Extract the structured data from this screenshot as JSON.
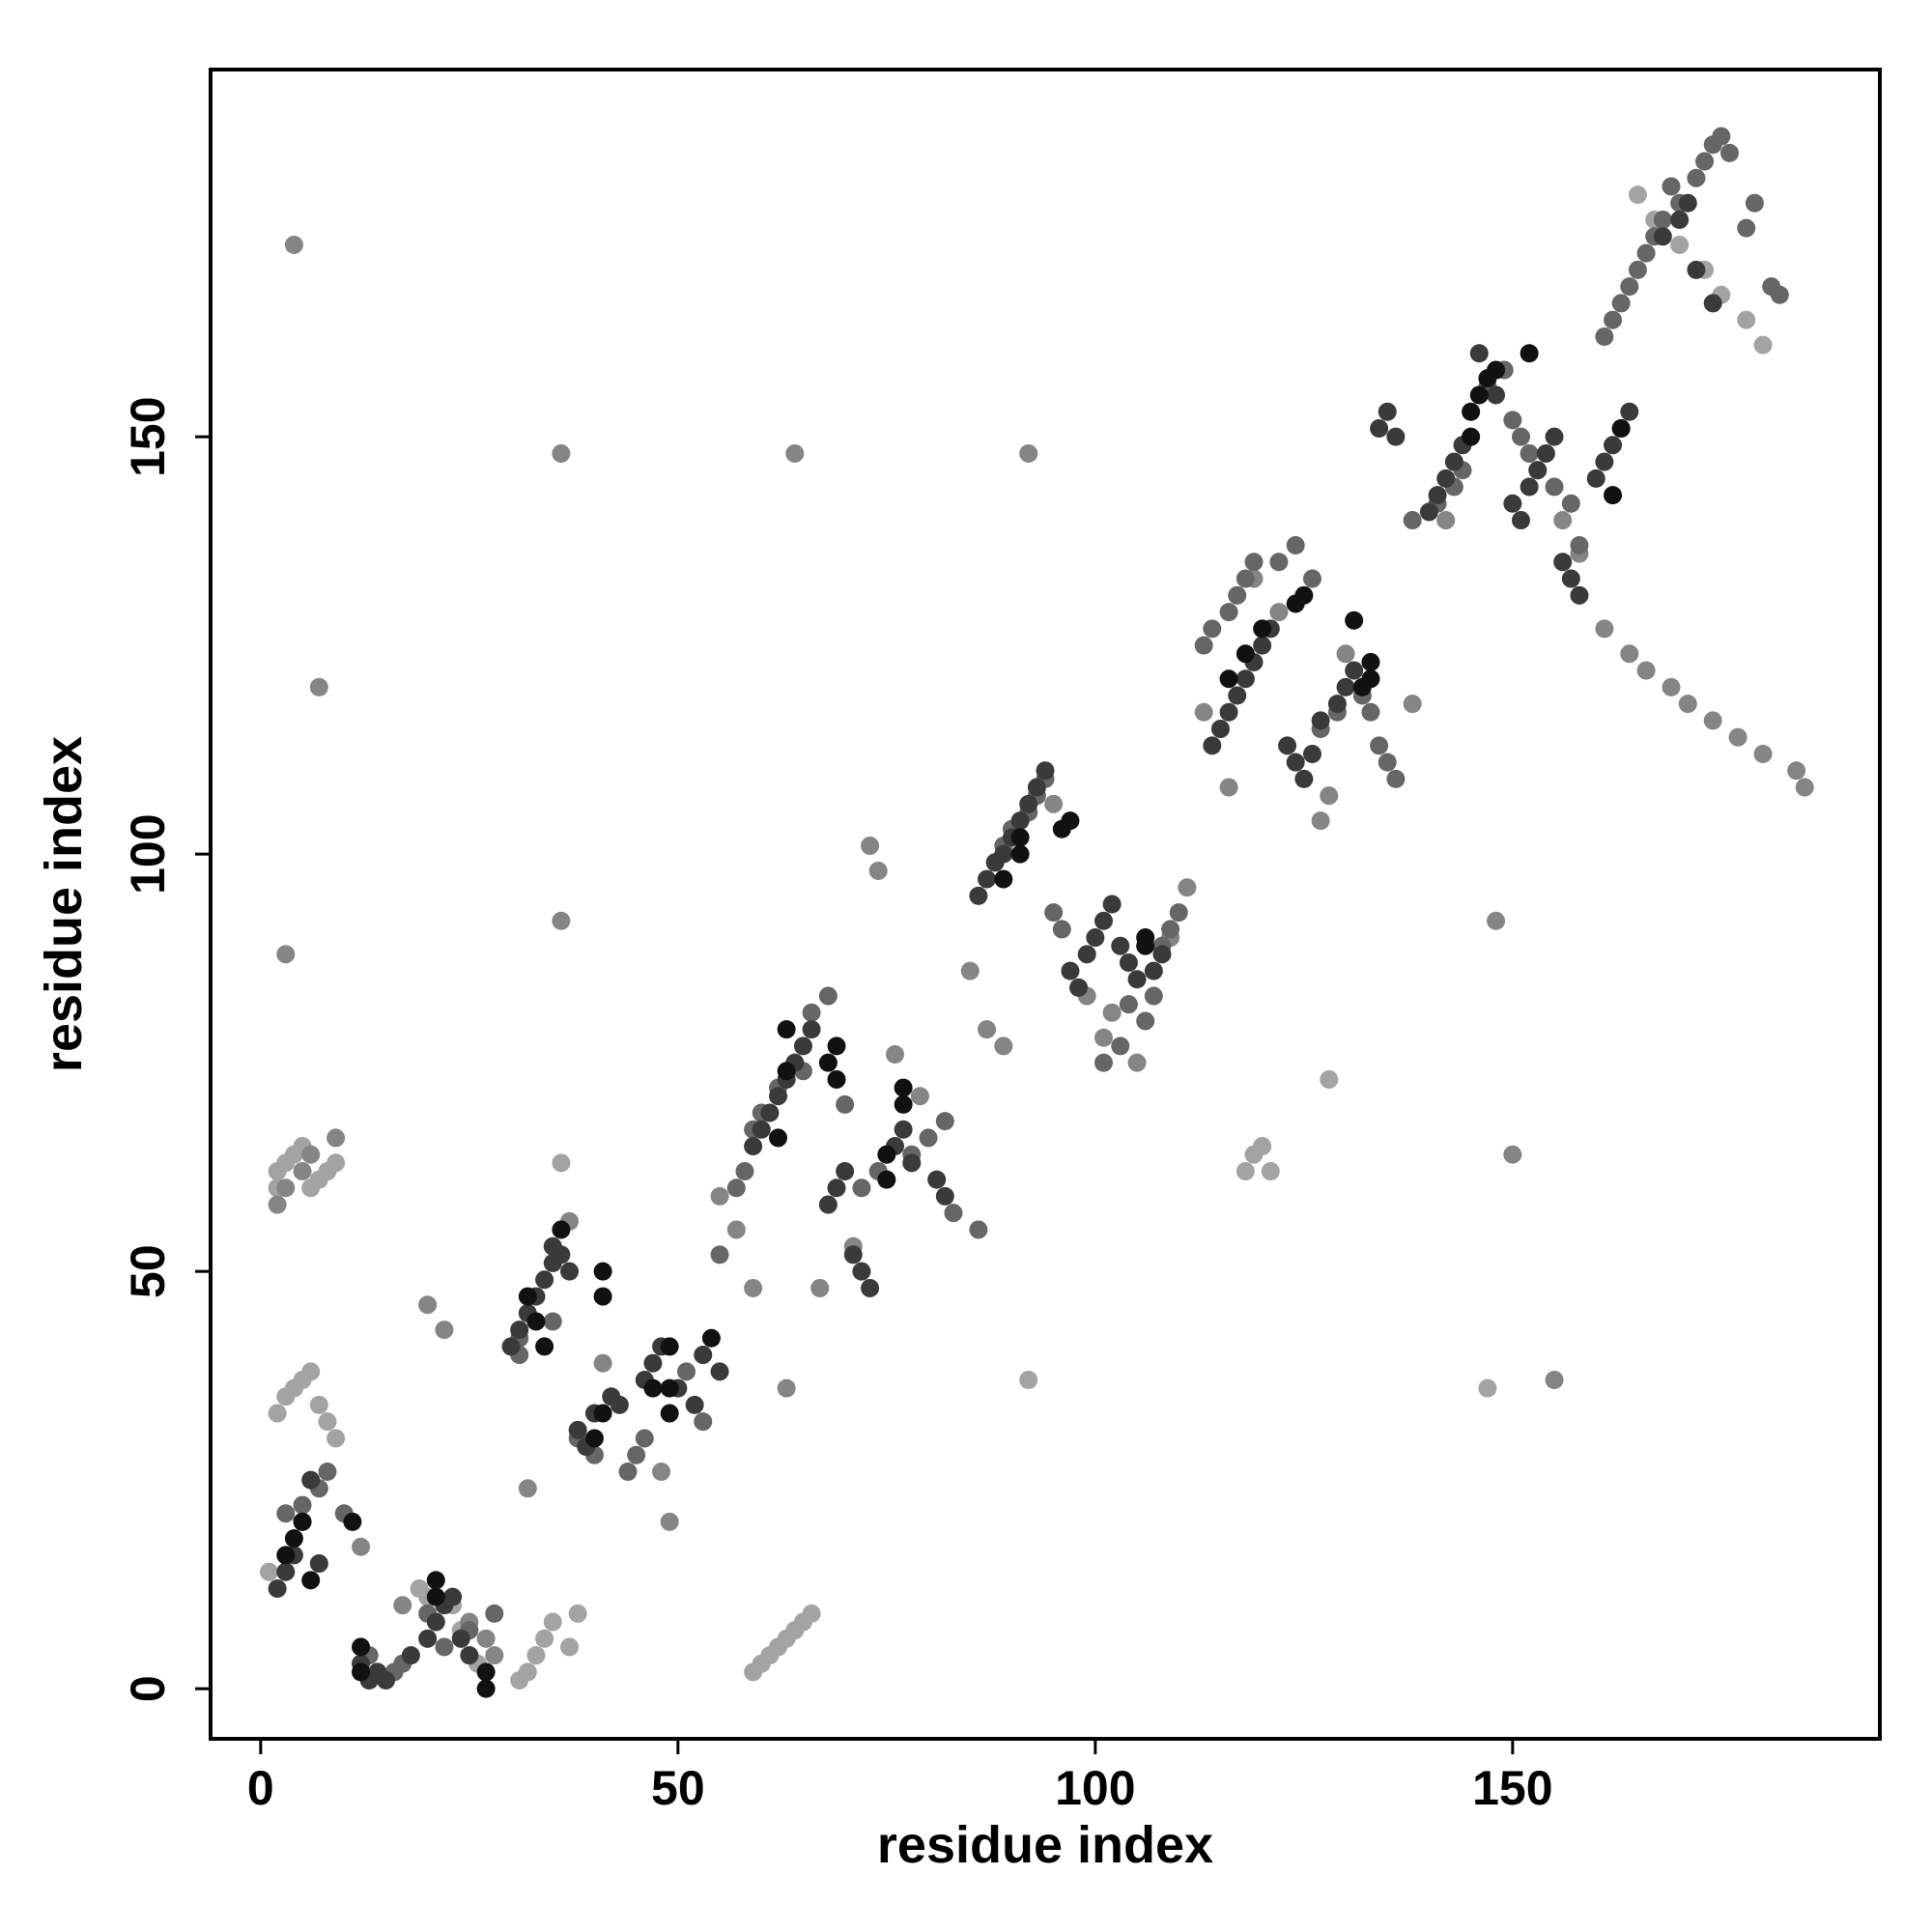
{
  "chart_data": {
    "type": "scatter",
    "title": "",
    "xlabel": "residue index",
    "ylabel": "residue index",
    "xlim": [
      -6,
      194
    ],
    "ylim": [
      -6,
      194
    ],
    "xticks": [
      0,
      50,
      100,
      150
    ],
    "yticks": [
      0,
      50,
      100,
      150
    ],
    "grid": false,
    "legend": "none",
    "shade_colors": {
      "black": "#111111",
      "dark": "#3a3a3a",
      "mid": "#666666",
      "gray": "#858585",
      "light": "#a3a3a3"
    },
    "series": [
      {
        "shade": "black",
        "x": [
          3,
          4,
          5,
          6,
          12,
          12,
          11,
          21,
          21,
          27,
          27,
          34,
          33,
          32,
          36,
          41,
          41,
          47,
          49,
          41,
          40,
          49,
          49,
          54,
          62,
          63,
          68,
          69,
          63,
          69,
          75,
          75,
          77,
          77,
          89,
          91,
          91,
          96,
          97,
          106,
          106,
          116,
          118,
          120,
          124,
          125,
          131,
          132,
          133,
          133,
          145,
          145,
          146,
          147,
          148,
          152,
          162,
          163
        ],
        "y": [
          16,
          18,
          20,
          13,
          2,
          5,
          20,
          11,
          13,
          0,
          2,
          41,
          44,
          47,
          55,
          50,
          47,
          36,
          41,
          33,
          30,
          33,
          36,
          42,
          66,
          74,
          75,
          77,
          79,
          73,
          61,
          64,
          70,
          72,
          97,
          100,
          102,
          103,
          104,
          90,
          89,
          121,
          124,
          127,
          130,
          131,
          128,
          120,
          121,
          123,
          150,
          153,
          155,
          157,
          158,
          160,
          143,
          151
        ]
      },
      {
        "shade": "dark",
        "x": [
          2,
          3,
          4,
          5,
          6,
          7,
          12,
          13,
          14,
          15,
          18,
          20,
          21,
          22,
          23,
          24,
          25,
          30,
          31,
          32,
          33,
          34,
          35,
          35,
          36,
          37,
          38,
          39,
          40,
          42,
          43,
          46,
          47,
          48,
          50,
          52,
          53,
          55,
          59,
          60,
          61,
          62,
          63,
          64,
          65,
          66,
          68,
          69,
          70,
          71,
          72,
          73,
          76,
          77,
          78,
          81,
          82,
          86,
          87,
          88,
          89,
          90,
          91,
          92,
          93,
          94,
          97,
          98,
          99,
          100,
          101,
          102,
          103,
          104,
          105,
          107,
          108,
          114,
          115,
          116,
          117,
          118,
          119,
          120,
          121,
          123,
          124,
          125,
          126,
          127,
          129,
          130,
          131,
          134,
          135,
          136,
          140,
          141,
          142,
          143,
          144,
          146,
          148,
          150,
          151,
          152,
          153,
          154,
          155,
          156,
          157,
          158,
          160,
          161,
          162,
          163,
          164,
          168,
          170,
          171,
          172,
          174
        ],
        "y": [
          12,
          14,
          16,
          20,
          25,
          15,
          3,
          1,
          2,
          1,
          4,
          6,
          8,
          10,
          11,
          6,
          4,
          41,
          43,
          45,
          47,
          49,
          51,
          53,
          52,
          50,
          31,
          29,
          33,
          35,
          34,
          37,
          39,
          41,
          36,
          34,
          40,
          38,
          65,
          67,
          69,
          71,
          73,
          75,
          77,
          79,
          58,
          60,
          62,
          52,
          50,
          48,
          65,
          67,
          63,
          61,
          59,
          95,
          97,
          99,
          100,
          102,
          104,
          106,
          108,
          110,
          86,
          84,
          88,
          90,
          92,
          94,
          89,
          87,
          85,
          86,
          88,
          113,
          115,
          117,
          119,
          121,
          123,
          125,
          127,
          113,
          111,
          109,
          112,
          116,
          118,
          120,
          122,
          151,
          153,
          150,
          141,
          143,
          145,
          147,
          149,
          160,
          155,
          142,
          140,
          144,
          146,
          148,
          150,
          135,
          133,
          131,
          145,
          147,
          149,
          151,
          153,
          174,
          176,
          178,
          170,
          166
        ]
      },
      {
        "shade": "mid",
        "x": [
          3,
          5,
          7,
          8,
          10,
          13,
          16,
          17,
          20,
          22,
          25,
          28,
          31,
          31,
          35,
          38,
          40,
          44,
          45,
          46,
          51,
          53,
          55,
          57,
          58,
          59,
          60,
          62,
          65,
          66,
          68,
          70,
          72,
          74,
          78,
          80,
          82,
          83,
          86,
          88,
          89,
          90,
          92,
          93,
          94,
          95,
          96,
          101,
          103,
          104,
          106,
          107,
          108,
          109,
          110,
          113,
          114,
          116,
          117,
          118,
          119,
          122,
          124,
          126,
          127,
          129,
          132,
          133,
          134,
          135,
          136,
          138,
          141,
          143,
          144,
          147,
          149,
          150,
          151,
          152,
          153,
          155,
          157,
          158,
          161,
          162,
          163,
          164,
          165,
          166,
          167,
          168,
          169,
          170,
          172,
          173,
          174,
          175,
          176,
          178,
          179,
          181,
          182
        ],
        "y": [
          21,
          22,
          24,
          26,
          21,
          4,
          2,
          3,
          9,
          5,
          7,
          9,
          40,
          42,
          44,
          30,
          28,
          26,
          28,
          30,
          38,
          32,
          52,
          60,
          62,
          67,
          69,
          72,
          74,
          81,
          83,
          70,
          60,
          62,
          64,
          66,
          68,
          57,
          55,
          99,
          101,
          103,
          105,
          107,
          109,
          93,
          91,
          75,
          77,
          82,
          80,
          83,
          89,
          91,
          93,
          125,
          127,
          129,
          131,
          133,
          135,
          135,
          137,
          133,
          115,
          117,
          119,
          117,
          113,
          111,
          109,
          140,
          142,
          144,
          146,
          156,
          158,
          152,
          150,
          148,
          146,
          144,
          142,
          137,
          162,
          164,
          166,
          168,
          170,
          172,
          174,
          176,
          180,
          178,
          181,
          183,
          185,
          186,
          184,
          175,
          178,
          168,
          167
        ]
      },
      {
        "shade": "gray",
        "x": [
          4,
          7,
          3,
          36,
          64,
          92,
          2,
          3,
          5,
          6,
          9,
          12,
          17,
          20,
          22,
          25,
          27,
          28,
          32,
          36,
          37,
          41,
          48,
          49,
          55,
          57,
          59,
          63,
          67,
          71,
          73,
          74,
          76,
          79,
          85,
          87,
          89,
          95,
          99,
          101,
          102,
          105,
          109,
          111,
          113,
          116,
          119,
          122,
          127,
          128,
          130,
          138,
          142,
          148,
          150,
          155,
          156,
          158,
          161,
          164,
          166,
          169,
          171,
          174,
          177,
          180,
          184,
          185
        ],
        "y": [
          173,
          120,
          88,
          148,
          148,
          148,
          58,
          60,
          62,
          64,
          66,
          17,
          10,
          46,
          43,
          8,
          6,
          4,
          24,
          92,
          56,
          39,
          26,
          20,
          59,
          55,
          48,
          36,
          48,
          53,
          101,
          98,
          76,
          71,
          86,
          79,
          77,
          106,
          83,
          78,
          81,
          75,
          90,
          96,
          117,
          108,
          133,
          129,
          104,
          107,
          124,
          118,
          140,
          92,
          64,
          37,
          140,
          136,
          127,
          124,
          122,
          120,
          118,
          116,
          114,
          112,
          110,
          108
        ]
      },
      {
        "shade": "light",
        "x": [
          1,
          2,
          2,
          3,
          4,
          5,
          6,
          7,
          8,
          9,
          2,
          3,
          4,
          5,
          6,
          7,
          8,
          9,
          19,
          20,
          23,
          24,
          26,
          31,
          32,
          33,
          34,
          35,
          36,
          37,
          38,
          59,
          60,
          61,
          62,
          63,
          64,
          65,
          66,
          118,
          119,
          120,
          121,
          92,
          128,
          147,
          165,
          167,
          170,
          173,
          175,
          178,
          180
        ],
        "y": [
          14,
          60,
          62,
          63,
          64,
          65,
          60,
          61,
          62,
          63,
          33,
          35,
          36,
          37,
          38,
          34,
          32,
          30,
          12,
          11,
          10,
          7,
          3,
          1,
          2,
          4,
          6,
          8,
          63,
          5,
          9,
          2,
          3,
          4,
          5,
          6,
          7,
          8,
          9,
          62,
          64,
          65,
          62,
          37,
          73,
          36,
          179,
          176,
          173,
          170,
          167,
          164,
          161
        ]
      }
    ]
  }
}
